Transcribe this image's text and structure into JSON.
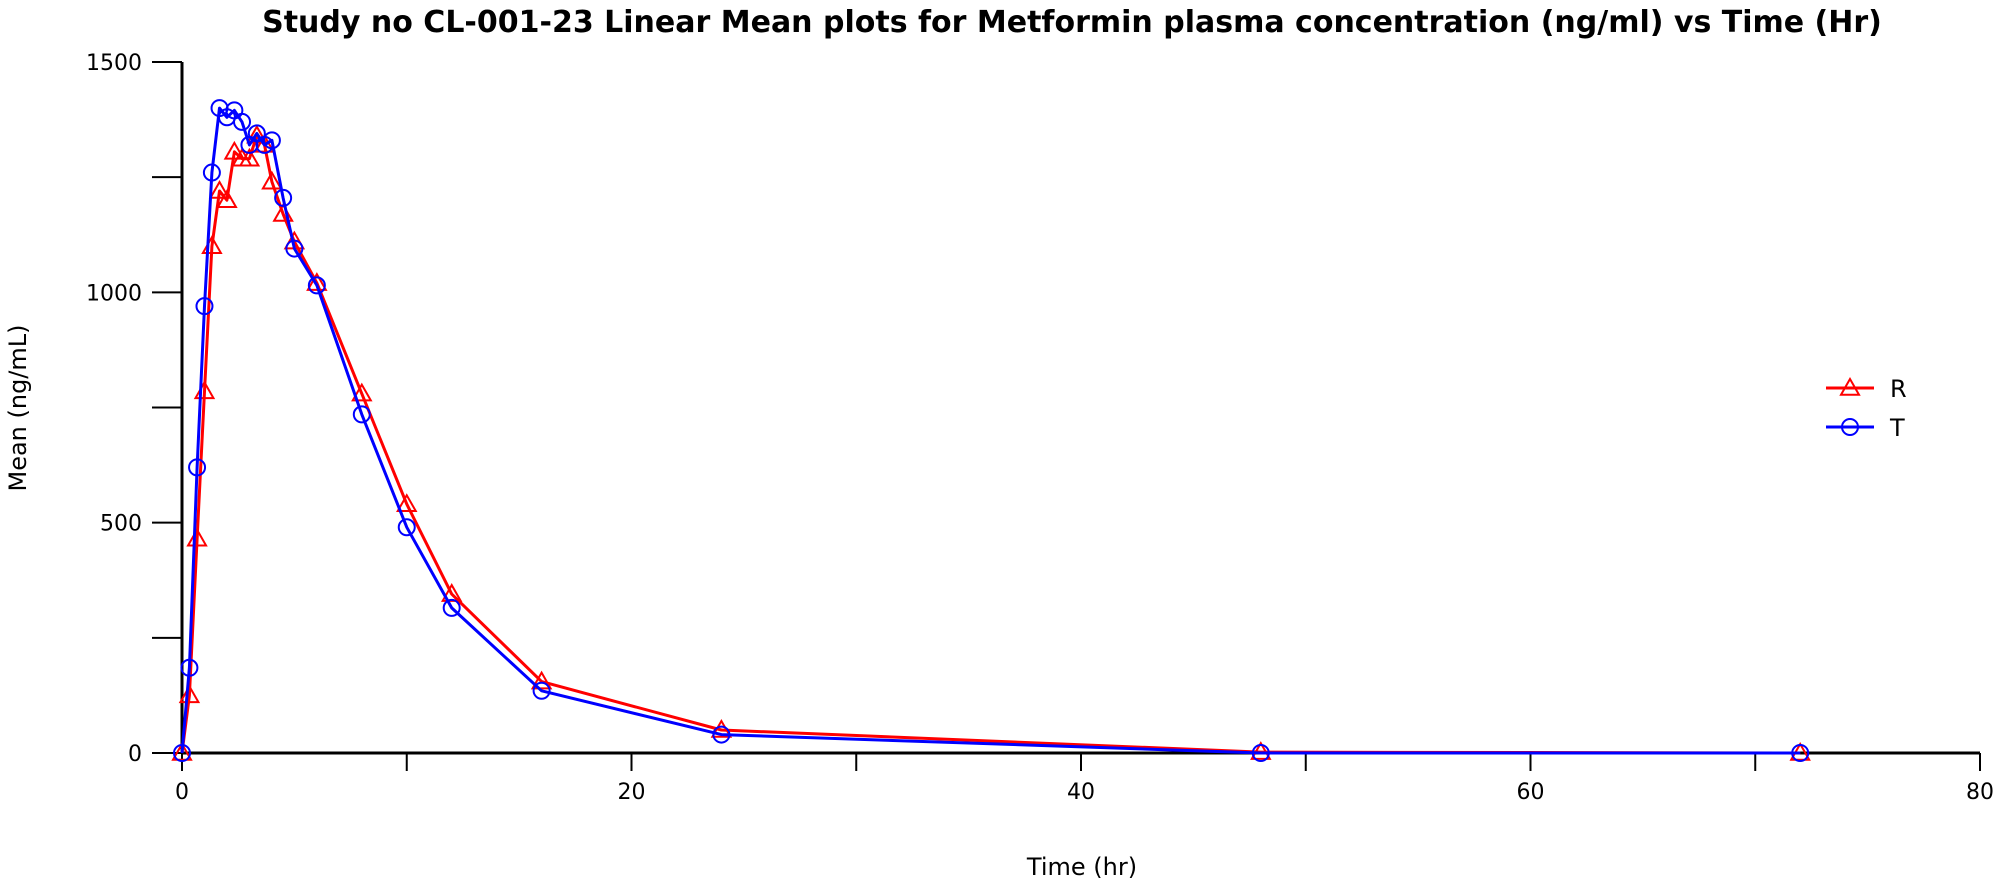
{
  "chart_data": {
    "type": "line",
    "title": "Study no CL-001-23 Linear Mean plots for Metformin plasma concentration (ng/ml) vs Time (Hr)",
    "xlabel": "Time (hr)",
    "ylabel": "Mean (ng/mL)",
    "xlim": [
      0,
      80
    ],
    "ylim": [
      0,
      1500
    ],
    "x_ticks": [
      0,
      20,
      40,
      60,
      80
    ],
    "x_minor_ticks": [
      10,
      30,
      50,
      70
    ],
    "y_ticks": [
      0,
      500,
      1000,
      1500
    ],
    "y_minor_ticks": [
      250,
      750,
      1250
    ],
    "grid": false,
    "legend_position": "right",
    "series": [
      {
        "name": "R",
        "color": "#ff0000",
        "marker": "triangle",
        "x": [
          0,
          0.33,
          0.67,
          1,
          1.33,
          1.67,
          2,
          2.33,
          2.67,
          3,
          3.33,
          3.67,
          4,
          4.5,
          5,
          6,
          8,
          10,
          12,
          16,
          24,
          48,
          72
        ],
        "y": [
          0,
          125,
          465,
          785,
          1100,
          1220,
          1200,
          1305,
          1290,
          1290,
          1340,
          1320,
          1240,
          1170,
          1110,
          1020,
          780,
          540,
          345,
          155,
          50,
          2,
          0
        ]
      },
      {
        "name": "T",
        "color": "#0000ff",
        "marker": "circle",
        "x": [
          0,
          0.33,
          0.67,
          1,
          1.33,
          1.67,
          2,
          2.33,
          2.67,
          3,
          3.33,
          3.67,
          4,
          4.5,
          5,
          6,
          8,
          10,
          12,
          16,
          24,
          48,
          72
        ],
        "y": [
          0,
          185,
          620,
          970,
          1260,
          1400,
          1380,
          1395,
          1370,
          1320,
          1345,
          1320,
          1330,
          1205,
          1095,
          1015,
          735,
          490,
          315,
          135,
          40,
          0,
          0
        ]
      }
    ]
  }
}
